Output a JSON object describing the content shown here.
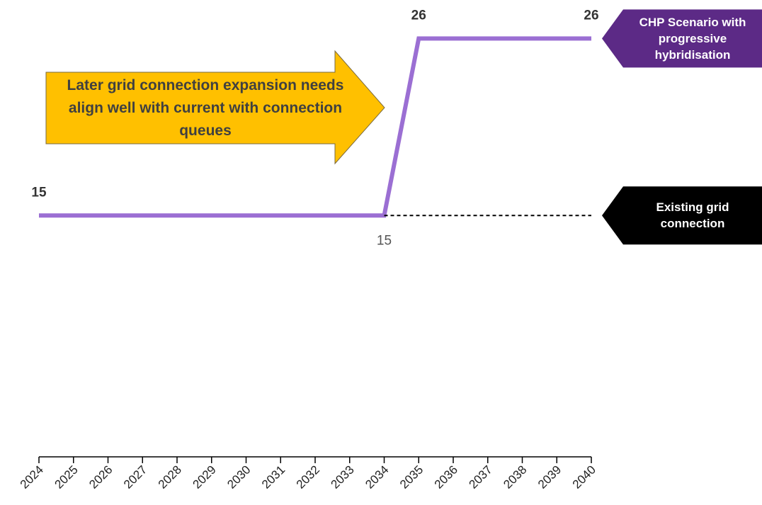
{
  "chart_data": {
    "type": "line",
    "categories": [
      "2024",
      "2025",
      "2026",
      "2027",
      "2028",
      "2029",
      "2030",
      "2031",
      "2032",
      "2033",
      "2034",
      "2035",
      "2036",
      "2037",
      "2038",
      "2039",
      "2040"
    ],
    "series": [
      {
        "name": "CHP Scenario with progressive hybridisation",
        "color": "#9b6fd3",
        "tag_color": "#5c2a86",
        "dashed": false,
        "values": [
          15,
          15,
          15,
          15,
          15,
          15,
          15,
          15,
          15,
          15,
          15,
          26,
          26,
          26,
          26,
          26,
          26
        ],
        "labeled": [
          0,
          11,
          16
        ]
      },
      {
        "name": "Existing grid connection",
        "color": "#000000",
        "tag_color": "#000000",
        "dashed": true,
        "values": [
          null,
          null,
          null,
          null,
          null,
          null,
          null,
          null,
          null,
          null,
          15,
          15,
          15,
          15,
          15,
          15,
          15
        ],
        "labeled": [
          10
        ]
      }
    ],
    "annotation": "Later grid connection expansion needs align well with current with connection queues",
    "ylim": [
      0,
      28
    ]
  }
}
